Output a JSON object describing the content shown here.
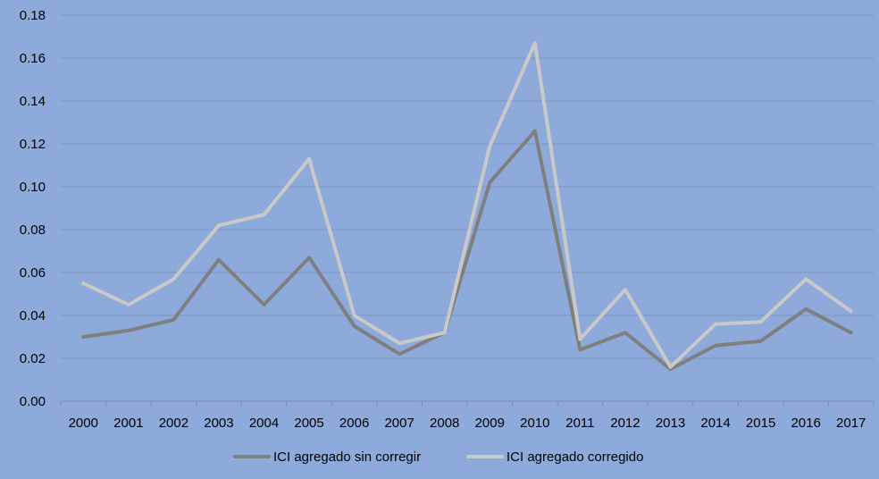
{
  "chart_data": {
    "type": "line",
    "title": "",
    "xlabel": "",
    "ylabel": "",
    "categories": [
      "2000",
      "2001",
      "2002",
      "2003",
      "2004",
      "2005",
      "2006",
      "2007",
      "2008",
      "2009",
      "2010",
      "2011",
      "2012",
      "2013",
      "2014",
      "2015",
      "2016",
      "2017"
    ],
    "y_ticks": [
      "0.00",
      "0.02",
      "0.04",
      "0.06",
      "0.08",
      "0.10",
      "0.12",
      "0.14",
      "0.16",
      "0.18"
    ],
    "ylim": [
      0,
      0.18
    ],
    "grid": true,
    "legend_position": "bottom",
    "series": [
      {
        "name": "ICI agregado sin corregir",
        "color": "#7f7f7f",
        "values": [
          0.03,
          0.033,
          0.038,
          0.066,
          0.045,
          0.067,
          0.035,
          0.022,
          0.032,
          0.102,
          0.126,
          0.024,
          0.032,
          0.015,
          0.026,
          0.028,
          0.043,
          0.032
        ]
      },
      {
        "name": "ICI agregado corregido",
        "color": "#c9c9c9",
        "values": [
          0.055,
          0.045,
          0.057,
          0.082,
          0.087,
          0.113,
          0.04,
          0.027,
          0.032,
          0.119,
          0.167,
          0.029,
          0.052,
          0.016,
          0.036,
          0.037,
          0.057,
          0.042
        ]
      }
    ]
  },
  "colors": {
    "background": "#8eaadb",
    "gridline": "#7f95bf",
    "axis": "#7a8fb5"
  }
}
